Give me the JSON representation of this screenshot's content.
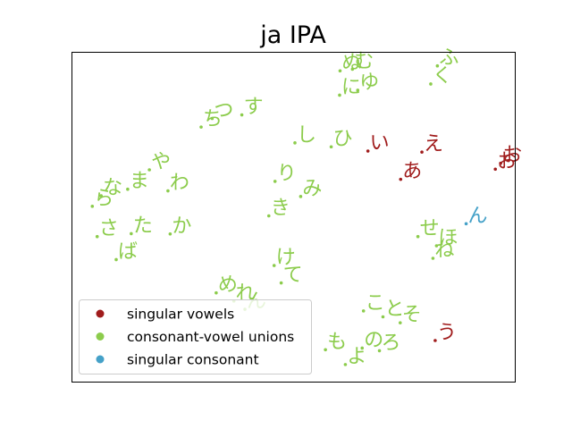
{
  "chart_data": {
    "type": "scatter",
    "title": "ja IPA",
    "xlabel": "",
    "ylabel": "",
    "xlim": [
      0,
      100
    ],
    "ylim": [
      0,
      100
    ],
    "grid": false,
    "legend_placement": "bottom-left",
    "series": [
      {
        "name": "singular vowels",
        "color": "#a01c1c",
        "points": [
          {
            "label": "い",
            "x": 66.8,
            "y": 70.1
          },
          {
            "label": "え",
            "x": 79.0,
            "y": 69.8
          },
          {
            "label": "あ",
            "x": 74.2,
            "y": 61.5
          },
          {
            "label": "お",
            "x": 95.6,
            "y": 64.6
          },
          {
            "label": "お",
            "x": 96.8,
            "y": 66.4
          },
          {
            "label": "う",
            "x": 82.0,
            "y": 12.5
          }
        ]
      },
      {
        "name": "consonant-vowel unions",
        "color": "#8ccc4c",
        "points": [
          {
            "label": "ぬ",
            "x": 60.5,
            "y": 94.5
          },
          {
            "label": "む",
            "x": 63.3,
            "y": 95.0
          },
          {
            "label": "ふ",
            "x": 82.5,
            "y": 96.0
          },
          {
            "label": "く",
            "x": 81.0,
            "y": 90.5
          },
          {
            "label": "に",
            "x": 60.4,
            "y": 87.1
          },
          {
            "label": "ゆ",
            "x": 64.5,
            "y": 88.6
          },
          {
            "label": "ち",
            "x": 29.1,
            "y": 77.4
          },
          {
            "label": "つ",
            "x": 31.6,
            "y": 80.0
          },
          {
            "label": "す",
            "x": 38.3,
            "y": 81.1
          },
          {
            "label": "し",
            "x": 50.3,
            "y": 72.6
          },
          {
            "label": "ひ",
            "x": 58.5,
            "y": 71.4
          },
          {
            "label": "り",
            "x": 45.8,
            "y": 60.9
          },
          {
            "label": "み",
            "x": 51.6,
            "y": 56.3
          },
          {
            "label": "き",
            "x": 44.4,
            "y": 50.4
          },
          {
            "label": "ら",
            "x": 4.5,
            "y": 53.3
          },
          {
            "label": "な",
            "x": 6.5,
            "y": 56.5
          },
          {
            "label": "ま",
            "x": 12.5,
            "y": 58.5
          },
          {
            "label": "や",
            "x": 17.4,
            "y": 64.4
          },
          {
            "label": "わ",
            "x": 21.6,
            "y": 58.0
          },
          {
            "label": "さ",
            "x": 5.6,
            "y": 44.1
          },
          {
            "label": "た",
            "x": 13.3,
            "y": 45.0
          },
          {
            "label": "ば",
            "x": 9.9,
            "y": 37.1
          },
          {
            "label": "か",
            "x": 22.1,
            "y": 44.9
          },
          {
            "label": "せ",
            "x": 78.1,
            "y": 44.1
          },
          {
            "label": "ほ",
            "x": 82.3,
            "y": 41.3
          },
          {
            "label": "ね",
            "x": 81.5,
            "y": 37.5
          },
          {
            "label": "け",
            "x": 45.6,
            "y": 35.3
          },
          {
            "label": "て",
            "x": 47.2,
            "y": 30.0
          },
          {
            "label": "め",
            "x": 32.5,
            "y": 27.0
          },
          {
            "label": "れ",
            "x": 36.5,
            "y": 24.5
          },
          {
            "label": "ん",
            "x": 39.0,
            "y": 22.0
          },
          {
            "label": "こ",
            "x": 65.8,
            "y": 21.5
          },
          {
            "label": "と",
            "x": 70.2,
            "y": 19.7
          },
          {
            "label": "そ",
            "x": 74.1,
            "y": 17.9
          },
          {
            "label": "も",
            "x": 57.2,
            "y": 9.7
          },
          {
            "label": "よ",
            "x": 61.7,
            "y": 5.2
          },
          {
            "label": "の",
            "x": 65.5,
            "y": 10.2
          },
          {
            "label": "ろ",
            "x": 69.4,
            "y": 9.4
          }
        ]
      },
      {
        "name": "singular consonant",
        "color": "#45a1c8",
        "points": [
          {
            "label": "ん",
            "x": 89.0,
            "y": 48.0
          }
        ]
      }
    ]
  }
}
